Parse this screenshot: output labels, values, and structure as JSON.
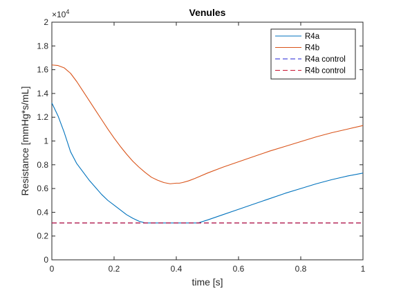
{
  "chart_data": {
    "type": "line",
    "title": "Venules",
    "xlabel": "time [s]",
    "ylabel": "Resistance [mmHg*s/mL]",
    "xlim": [
      0,
      1
    ],
    "ylim": [
      0,
      20000
    ],
    "x_ticks": [
      "0",
      "0.2",
      "0.4",
      "0.6",
      "0.8",
      "1"
    ],
    "y_ticks": [
      "0",
      "0.2",
      "0.4",
      "0.6",
      "0.8",
      "1",
      "1.2",
      "1.4",
      "1.6",
      "1.8",
      "2"
    ],
    "y_exponent_base": "×10",
    "y_exponent_power": "4",
    "grid": false,
    "legend_position": "top-right",
    "series": [
      {
        "name": "R4a",
        "color": "#0072BD",
        "dash": "solid",
        "x": [
          0,
          0.02,
          0.04,
          0.06,
          0.08,
          0.1,
          0.12,
          0.14,
          0.16,
          0.18,
          0.2,
          0.22,
          0.24,
          0.26,
          0.28,
          0.3,
          0.31,
          0.35,
          0.4,
          0.45,
          0.47,
          0.5,
          0.55,
          0.6,
          0.65,
          0.7,
          0.75,
          0.8,
          0.85,
          0.9,
          0.95,
          1.0
        ],
        "values": [
          13200,
          12100,
          10700,
          9100,
          8100,
          7400,
          6700,
          6100,
          5500,
          5000,
          4600,
          4200,
          3800,
          3500,
          3250,
          3100,
          3100,
          3100,
          3100,
          3100,
          3100,
          3350,
          3800,
          4250,
          4700,
          5150,
          5600,
          6000,
          6400,
          6750,
          7050,
          7300
        ]
      },
      {
        "name": "R4b",
        "color": "#D95319",
        "dash": "solid",
        "x": [
          0,
          0.02,
          0.04,
          0.06,
          0.08,
          0.1,
          0.12,
          0.14,
          0.16,
          0.18,
          0.2,
          0.22,
          0.24,
          0.26,
          0.28,
          0.3,
          0.32,
          0.34,
          0.36,
          0.38,
          0.4,
          0.41,
          0.42,
          0.44,
          0.46,
          0.5,
          0.55,
          0.6,
          0.65,
          0.7,
          0.75,
          0.8,
          0.85,
          0.9,
          0.95,
          1.0
        ],
        "values": [
          16400,
          16350,
          16150,
          15700,
          15000,
          14200,
          13400,
          12600,
          11800,
          11000,
          10250,
          9550,
          8900,
          8300,
          7800,
          7350,
          6950,
          6700,
          6500,
          6400,
          6450,
          6450,
          6500,
          6650,
          6850,
          7300,
          7800,
          8250,
          8700,
          9150,
          9550,
          9950,
          10350,
          10700,
          11000,
          11300
        ]
      },
      {
        "name": "R4a control",
        "color": "#1f1fd6",
        "dash": "dashed",
        "x": [
          0,
          1
        ],
        "values": [
          3100,
          3100
        ]
      },
      {
        "name": "R4b control",
        "color": "#c8102e",
        "dash": "dashed",
        "x": [
          0,
          1
        ],
        "values": [
          3100,
          3100
        ]
      }
    ]
  }
}
